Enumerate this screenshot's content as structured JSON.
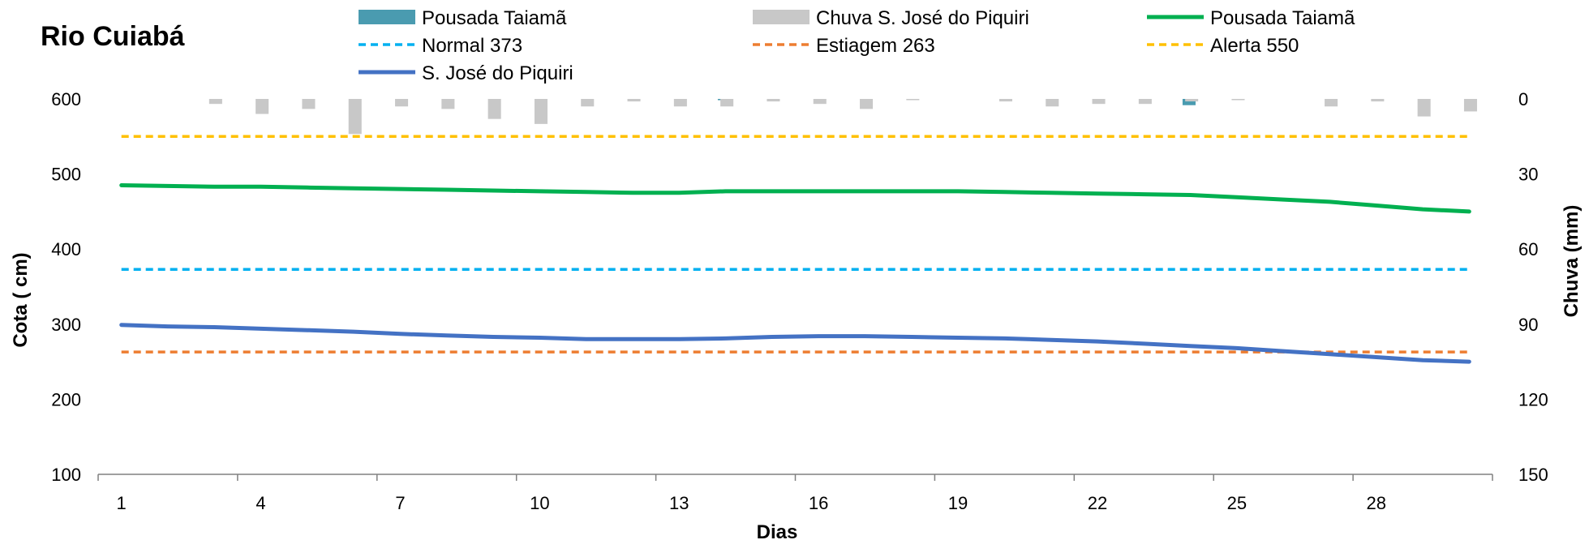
{
  "chart_data": {
    "type": "line",
    "title": "Rio Cuiabá",
    "xlabel": "Dias",
    "ylabel": "Cota  ( cm)",
    "y2label": "Chuva (mm)",
    "x": [
      1,
      2,
      3,
      4,
      5,
      6,
      7,
      8,
      9,
      10,
      11,
      12,
      13,
      14,
      15,
      16,
      17,
      18,
      19,
      20,
      21,
      22,
      23,
      24,
      25,
      26,
      27,
      28,
      29,
      30
    ],
    "x_ticks": [
      1,
      4,
      7,
      10,
      13,
      16,
      19,
      22,
      25,
      28
    ],
    "ylim": [
      100,
      600
    ],
    "y_ticks": [
      100,
      200,
      300,
      400,
      500,
      600
    ],
    "y2lim": [
      0,
      150
    ],
    "y2_ticks": [
      0,
      30,
      60,
      90,
      120,
      150
    ],
    "y2_reversed": true,
    "grid": false,
    "legend_position": "top",
    "series": [
      {
        "name": "Pousada Taiamã",
        "kind": "bar",
        "axis": "y2",
        "color": "#4a9bb0",
        "values": [
          0,
          0,
          0,
          0,
          0,
          0,
          0,
          0,
          0,
          0,
          0,
          0,
          0,
          0.5,
          0,
          0,
          0,
          0,
          0,
          0,
          0,
          0,
          0,
          2.5,
          0,
          0,
          0,
          0,
          0,
          0
        ]
      },
      {
        "name": "Chuva S. José do Piquiri",
        "kind": "bar",
        "axis": "y2",
        "color": "#c8c8c8",
        "values": [
          0,
          0,
          2,
          6,
          4,
          14,
          3,
          4,
          8,
          10,
          3,
          1,
          3,
          3,
          1,
          2,
          4,
          0.5,
          0,
          1,
          3,
          2,
          2,
          1,
          0.5,
          0,
          3,
          1,
          7,
          5
        ]
      },
      {
        "name": "Pousada Taiamã",
        "kind": "line",
        "axis": "y",
        "color": "#00b050",
        "values": [
          485,
          484,
          483,
          483,
          482,
          481,
          480,
          479,
          478,
          477,
          476,
          475,
          475,
          477,
          477,
          477,
          477,
          477,
          477,
          476,
          475,
          474,
          473,
          472,
          469,
          466,
          463,
          458,
          453,
          450
        ]
      },
      {
        "name": "Normal  373",
        "kind": "dashed",
        "axis": "y",
        "color": "#00b0f0",
        "values": [
          373,
          373,
          373,
          373,
          373,
          373,
          373,
          373,
          373,
          373,
          373,
          373,
          373,
          373,
          373,
          373,
          373,
          373,
          373,
          373,
          373,
          373,
          373,
          373,
          373,
          373,
          373,
          373,
          373,
          373
        ]
      },
      {
        "name": "Estiagem 263",
        "kind": "dashed",
        "axis": "y",
        "color": "#ed7d31",
        "values": [
          263,
          263,
          263,
          263,
          263,
          263,
          263,
          263,
          263,
          263,
          263,
          263,
          263,
          263,
          263,
          263,
          263,
          263,
          263,
          263,
          263,
          263,
          263,
          263,
          263,
          263,
          263,
          263,
          263,
          263
        ]
      },
      {
        "name": "Alerta 550",
        "kind": "dashed",
        "axis": "y",
        "color": "#ffc000",
        "values": [
          550,
          550,
          550,
          550,
          550,
          550,
          550,
          550,
          550,
          550,
          550,
          550,
          550,
          550,
          550,
          550,
          550,
          550,
          550,
          550,
          550,
          550,
          550,
          550,
          550,
          550,
          550,
          550,
          550,
          550
        ]
      },
      {
        "name": "S. José do Piquiri",
        "kind": "line",
        "axis": "y",
        "color": "#4472c4",
        "values": [
          299,
          297,
          296,
          294,
          292,
          290,
          287,
          285,
          283,
          282,
          280,
          280,
          280,
          281,
          283,
          284,
          284,
          283,
          282,
          281,
          279,
          277,
          274,
          271,
          268,
          264,
          260,
          256,
          252,
          250
        ]
      }
    ]
  }
}
